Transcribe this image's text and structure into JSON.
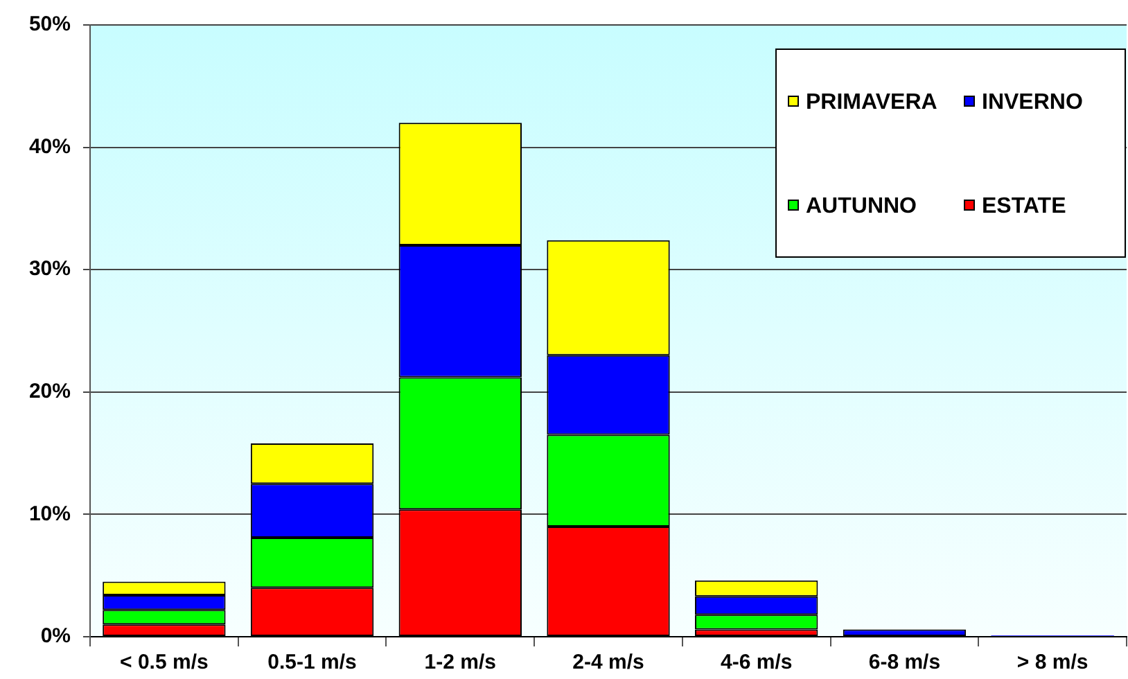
{
  "chart_data": {
    "type": "bar",
    "stacked": true,
    "categories": [
      "< 0.5 m/s",
      "0.5-1 m/s",
      "1-2 m/s",
      "2-4 m/s",
      "4-6 m/s",
      "6-8 m/s",
      "> 8 m/s"
    ],
    "series": [
      {
        "name": "ESTATE",
        "color": "#ff0000",
        "values": [
          1.0,
          4.0,
          10.4,
          9.0,
          0.6,
          null,
          null
        ]
      },
      {
        "name": "AUTUNNO",
        "color": "#00ff00",
        "values": [
          1.2,
          4.1,
          10.8,
          7.5,
          1.2,
          null,
          null
        ]
      },
      {
        "name": "INVERNO",
        "color": "#0000ff",
        "values": [
          1.2,
          4.4,
          10.8,
          6.5,
          1.5,
          0.6,
          0.1
        ]
      },
      {
        "name": "PRIMAVERA",
        "color": "#ffff00",
        "values": [
          1.1,
          3.3,
          10.0,
          9.4,
          1.3,
          null,
          null
        ]
      }
    ],
    "ylim": [
      0,
      50
    ],
    "yticks": [
      {
        "value": 0,
        "label": "0%"
      },
      {
        "value": 10,
        "label": "10%"
      },
      {
        "value": 20,
        "label": "20%"
      },
      {
        "value": 30,
        "label": "30%"
      },
      {
        "value": 40,
        "label": "40%"
      },
      {
        "value": 50,
        "label": "50%"
      }
    ],
    "grid": "y",
    "legend": "top right"
  }
}
